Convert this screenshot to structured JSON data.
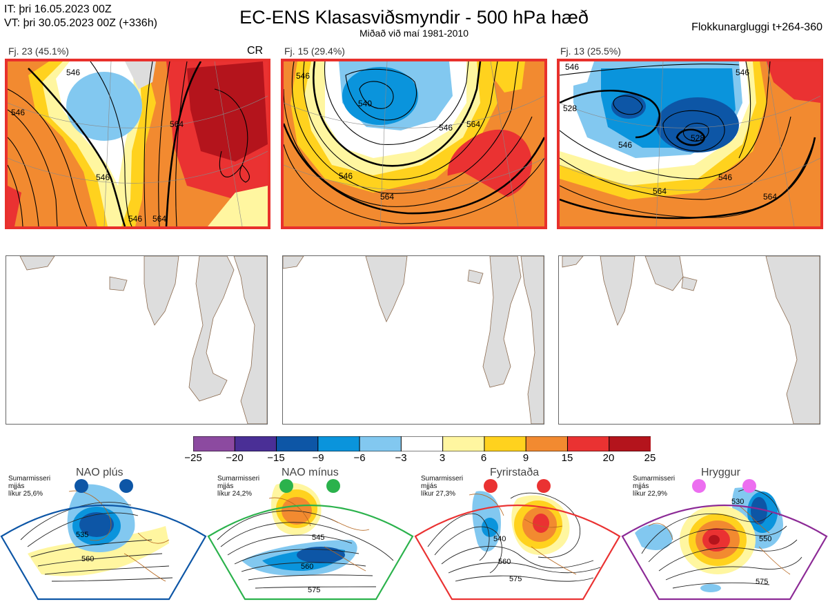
{
  "header": {
    "it": "IT: þri 16.05.2023 00Z",
    "vt": "VT: þri 30.05.2023 00Z  (+336h)",
    "title": "EC-ENS Klasasviðsmyndir - 500 hPa hæð",
    "subtitle": "Miðað við maí 1981-2010",
    "window": "Flokkunargluggi t+264-360"
  },
  "clusters": [
    {
      "label": "Fj. 23 (45.1%)",
      "tag": "CR",
      "contours": [
        "546",
        "546",
        "564",
        "546",
        "546",
        "564"
      ]
    },
    {
      "label": "Fj. 15 (29.4%)",
      "tag": "",
      "contours": [
        "546",
        "540",
        "546",
        "564",
        "546",
        "564"
      ]
    },
    {
      "label": "Fj. 13 (25.5%)",
      "tag": "",
      "contours": [
        "546",
        "546",
        "528",
        "528",
        "546",
        "564",
        "564",
        "546"
      ]
    }
  ],
  "colorbar": {
    "ticks": [
      "−25",
      "−20",
      "−15",
      "−9",
      "−6",
      "−3",
      "3",
      "6",
      "9",
      "15",
      "20",
      "25"
    ],
    "colors": [
      "#8c4aa0",
      "#4a2f96",
      "#0d56a6",
      "#0a94dc",
      "#82c8f0",
      "#ffffff",
      "#fff6a0",
      "#ffd21e",
      "#f28a30",
      "#ea3232",
      "#b4141c"
    ]
  },
  "regimes": [
    {
      "name": "NAO plús",
      "note": [
        "Sumarmisseri",
        "mjjás",
        "líkur 25,6%"
      ],
      "color": "#0d56a6",
      "labels": [
        "535",
        "560"
      ]
    },
    {
      "name": "NAO mínus",
      "note": [
        "Sumarmisseri",
        "mjjás",
        "líkur 24,2%"
      ],
      "color": "#2bb24c",
      "labels": [
        "545",
        "560",
        "575"
      ]
    },
    {
      "name": "Fyrirstaða",
      "note": [
        "Sumarmisseri",
        "mjjás",
        "líkur 27,3%"
      ],
      "color": "#ea3232",
      "labels": [
        "540",
        "560",
        "575"
      ]
    },
    {
      "name": "Hryggur",
      "note": [
        "Sumarmisseri",
        "mjjás",
        "líkur 22,9%"
      ],
      "color": "#ec6ef0",
      "labels": [
        "530",
        "550",
        "575"
      ]
    }
  ]
}
